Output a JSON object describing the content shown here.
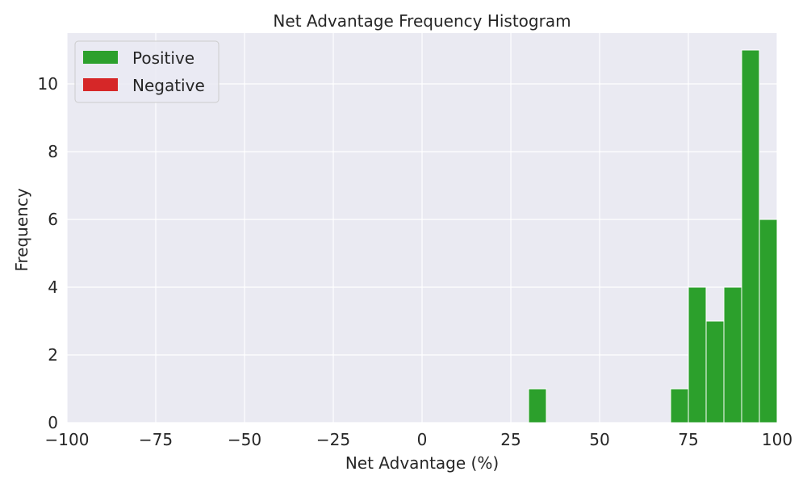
{
  "chart_data": {
    "type": "bar",
    "title": "Net Advantage Frequency Histogram",
    "xlabel": "Net Advantage (%)",
    "ylabel": "Frequency",
    "xlim": [
      -100,
      100
    ],
    "ylim": [
      0,
      11.5
    ],
    "x_ticks": [
      -100,
      -75,
      -50,
      -25,
      0,
      25,
      50,
      75,
      100
    ],
    "x_tick_labels": [
      "−100",
      "−75",
      "−50",
      "−25",
      "0",
      "25",
      "50",
      "75",
      "100"
    ],
    "y_ticks": [
      0,
      2,
      4,
      6,
      8,
      10
    ],
    "y_tick_labels": [
      "0",
      "2",
      "4",
      "6",
      "8",
      "10"
    ],
    "grid": true,
    "legend_position": "top-left",
    "bin_width": 5,
    "series": [
      {
        "name": "Positive",
        "color": "#2ca02c",
        "bins": [
          {
            "start": 30,
            "end": 35,
            "count": 1
          },
          {
            "start": 70,
            "end": 75,
            "count": 1
          },
          {
            "start": 75,
            "end": 80,
            "count": 4
          },
          {
            "start": 80,
            "end": 85,
            "count": 3
          },
          {
            "start": 85,
            "end": 90,
            "count": 4
          },
          {
            "start": 90,
            "end": 95,
            "count": 11
          },
          {
            "start": 95,
            "end": 100,
            "count": 6
          }
        ]
      },
      {
        "name": "Negative",
        "color": "#d62728",
        "bins": []
      }
    ]
  }
}
